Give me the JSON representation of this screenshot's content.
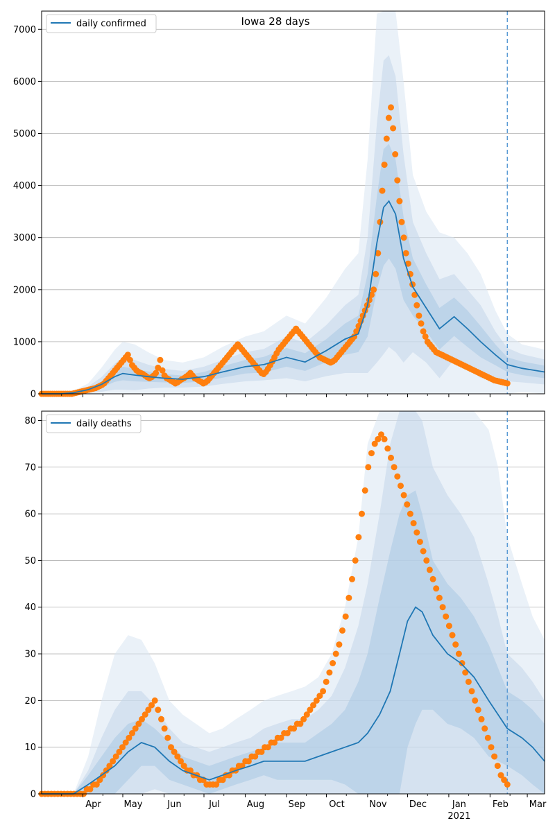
{
  "chart_data": [
    {
      "type": "line",
      "title": "Iowa 28 days",
      "xlabel": "",
      "ylabel": "",
      "xlim": [
        "2020-03-01",
        "2021-03-14"
      ],
      "ylim": [
        0,
        7350
      ],
      "yticks": [
        0,
        1000,
        2000,
        3000,
        4000,
        5000,
        6000,
        7000
      ],
      "grid": "horizontal",
      "legend_position": "top-left",
      "forecast_start": "2021-02-14",
      "series": [
        {
          "name": "daily confirmed",
          "color": "#1f77b4",
          "x": [
            "2020-03-01",
            "2020-03-15",
            "2020-03-25",
            "2020-04-05",
            "2020-04-15",
            "2020-04-25",
            "2020-05-01",
            "2020-05-10",
            "2020-05-20",
            "2020-06-01",
            "2020-06-15",
            "2020-07-01",
            "2020-07-15",
            "2020-08-01",
            "2020-08-15",
            "2020-09-01",
            "2020-09-15",
            "2020-10-01",
            "2020-10-15",
            "2020-10-25",
            "2020-11-01",
            "2020-11-08",
            "2020-11-13",
            "2020-11-17",
            "2020-11-22",
            "2020-11-28",
            "2020-12-05",
            "2020-12-15",
            "2020-12-25",
            "2021-01-05",
            "2021-01-15",
            "2021-01-25",
            "2021-02-05",
            "2021-02-14",
            "2021-02-25",
            "2021-03-14"
          ],
          "values": [
            0,
            0,
            20,
            80,
            180,
            330,
            390,
            360,
            330,
            300,
            280,
            330,
            420,
            520,
            560,
            700,
            610,
            830,
            1050,
            1150,
            1700,
            2900,
            3580,
            3700,
            3450,
            2600,
            2050,
            1650,
            1250,
            1480,
            1250,
            1000,
            750,
            560,
            490,
            420
          ]
        }
      ],
      "bands": [
        {
          "upper": [
            0,
            0,
            60,
            200,
            500,
            850,
            1000,
            950,
            800,
            650,
            600,
            700,
            900,
            1100,
            1200,
            1500,
            1350,
            1850,
            2400,
            2700,
            4500,
            7300,
            7400,
            7400,
            7400,
            6000,
            4200,
            3500,
            3100,
            3000,
            2700,
            2300,
            1600,
            1150,
            950,
            850
          ]
        },
        {
          "upper": [
            0,
            0,
            40,
            140,
            320,
            580,
            700,
            650,
            560,
            480,
            440,
            520,
            650,
            800,
            860,
            1100,
            980,
            1320,
            1700,
            1900,
            3000,
            5200,
            6400,
            6500,
            6100,
            4600,
            3300,
            2700,
            2200,
            2300,
            2000,
            1700,
            1200,
            880,
            760,
            660
          ]
        },
        {
          "upper": [
            0,
            0,
            30,
            100,
            240,
            430,
            520,
            480,
            430,
            380,
            350,
            420,
            530,
            650,
            710,
            880,
            780,
            1050,
            1350,
            1500,
            2300,
            3800,
            4700,
            4800,
            4500,
            3400,
            2600,
            2100,
            1650,
            1850,
            1600,
            1300,
            950,
            700,
            620,
            540
          ]
        }
      ],
      "observed": [
        0,
        0,
        0,
        0,
        0,
        0,
        0,
        0,
        0,
        0,
        0,
        0,
        0,
        0,
        0,
        10,
        20,
        30,
        40,
        50,
        60,
        70,
        80,
        90,
        100,
        110,
        130,
        150,
        170,
        200,
        250,
        300,
        350,
        400,
        450,
        500,
        550,
        600,
        650,
        700,
        750,
        650,
        550,
        500,
        450,
        420,
        400,
        380,
        350,
        320,
        300,
        320,
        350,
        400,
        500,
        650,
        450,
        350,
        300,
        280,
        250,
        230,
        200,
        220,
        250,
        280,
        300,
        330,
        360,
        400,
        350,
        300,
        280,
        250,
        230,
        200,
        220,
        250,
        300,
        350,
        400,
        450,
        500,
        550,
        600,
        650,
        700,
        750,
        800,
        850,
        900,
        950,
        900,
        850,
        800,
        750,
        700,
        650,
        600,
        550,
        500,
        450,
        400,
        380,
        420,
        480,
        550,
        620,
        700,
        780,
        850,
        900,
        950,
        1000,
        1050,
        1100,
        1150,
        1200,
        1250,
        1200,
        1150,
        1100,
        1050,
        1000,
        950,
        900,
        850,
        800,
        750,
        700,
        680,
        660,
        640,
        620,
        600,
        620,
        650,
        700,
        750,
        800,
        850,
        900,
        950,
        1000,
        1050,
        1100,
        1200,
        1300,
        1400,
        1500,
        1600,
        1700,
        1800,
        1900,
        2000,
        2300,
        2700,
        3300,
        3900,
        4400,
        4900,
        5300,
        5500,
        5100,
        4600,
        4100,
        3700,
        3300,
        3000,
        2700,
        2500,
        2300,
        2100,
        1900,
        1700,
        1500,
        1350,
        1200,
        1100,
        1000,
        950,
        900,
        850,
        800,
        780,
        760,
        740,
        720,
        700,
        680,
        660,
        640,
        620,
        600,
        580,
        560,
        540,
        520,
        500,
        480,
        460,
        440,
        420,
        400,
        380,
        360,
        340,
        320,
        300,
        280,
        260,
        250,
        240,
        230,
        220,
        210,
        200
      ]
    },
    {
      "type": "line",
      "title": "",
      "xlabel": "",
      "ylabel": "",
      "xlim": [
        "2020-03-01",
        "2021-03-14"
      ],
      "ylim": [
        0,
        82
      ],
      "yticks": [
        0,
        10,
        20,
        30,
        40,
        50,
        60,
        70,
        80
      ],
      "xtick_labels": [
        "Apr",
        "May",
        "Jun",
        "Jul",
        "Aug",
        "Sep",
        "Oct",
        "Nov",
        "Dec",
        "Jan",
        "Feb",
        "Mar"
      ],
      "xtick_dates": [
        "2020-04-01",
        "2020-05-01",
        "2020-06-01",
        "2020-07-01",
        "2020-08-01",
        "2020-09-01",
        "2020-10-01",
        "2020-11-01",
        "2020-12-01",
        "2021-01-01",
        "2021-02-01",
        "2021-03-01"
      ],
      "year_label": "2021",
      "grid": "horizontal",
      "legend_position": "top-left",
      "forecast_start": "2021-02-14",
      "series": [
        {
          "name": "daily deaths",
          "color": "#1f77b4",
          "x": [
            "2020-03-01",
            "2020-03-25",
            "2020-04-05",
            "2020-04-15",
            "2020-04-25",
            "2020-05-05",
            "2020-05-15",
            "2020-05-25",
            "2020-06-05",
            "2020-06-15",
            "2020-06-25",
            "2020-07-05",
            "2020-07-15",
            "2020-07-25",
            "2020-08-05",
            "2020-08-15",
            "2020-08-25",
            "2020-09-05",
            "2020-09-15",
            "2020-09-25",
            "2020-10-05",
            "2020-10-15",
            "2020-10-25",
            "2020-11-01",
            "2020-11-10",
            "2020-11-18",
            "2020-11-25",
            "2020-12-01",
            "2020-12-07",
            "2020-12-12",
            "2020-12-20",
            "2020-12-31",
            "2021-01-10",
            "2021-01-20",
            "2021-01-31",
            "2021-02-07",
            "2021-02-14",
            "2021-02-25",
            "2021-03-05",
            "2021-03-14"
          ],
          "values": [
            0,
            0,
            2,
            4,
            6,
            9,
            11,
            10,
            7,
            5,
            4,
            3,
            4,
            5,
            6,
            7,
            7,
            7,
            7,
            8,
            9,
            10,
            11,
            13,
            17,
            22,
            30,
            37,
            40,
            39,
            34,
            30,
            28,
            25,
            20,
            17,
            14,
            12,
            10,
            7
          ]
        }
      ],
      "bands": [
        {
          "upper": [
            0,
            0,
            8,
            20,
            30,
            34,
            33,
            28,
            20,
            17,
            15,
            13,
            14,
            16,
            18,
            20,
            21,
            22,
            23,
            25,
            30,
            40,
            55,
            75,
            82,
            82,
            82,
            82,
            82,
            82,
            82,
            82,
            82,
            82,
            78,
            70,
            55,
            45,
            38,
            33
          ]
        },
        {
          "upper": [
            0,
            0,
            5,
            12,
            18,
            22,
            22,
            19,
            14,
            11,
            10,
            9,
            10,
            11,
            12,
            14,
            15,
            16,
            16,
            18,
            21,
            27,
            36,
            45,
            60,
            75,
            82,
            82,
            82,
            80,
            70,
            64,
            60,
            55,
            45,
            38,
            30,
            27,
            24,
            20
          ]
        },
        {
          "upper": [
            0,
            0,
            4,
            8,
            12,
            15,
            16,
            14,
            11,
            8,
            7,
            6,
            7,
            8,
            9,
            10,
            11,
            11,
            11,
            13,
            15,
            18,
            24,
            30,
            42,
            52,
            60,
            64,
            65,
            60,
            50,
            45,
            42,
            38,
            32,
            27,
            22,
            20,
            18,
            15
          ]
        }
      ],
      "observed": [
        0,
        0,
        0,
        0,
        0,
        0,
        0,
        0,
        0,
        0,
        0,
        0,
        0,
        0,
        1,
        1,
        2,
        2,
        3,
        4,
        5,
        6,
        7,
        8,
        9,
        10,
        11,
        12,
        13,
        14,
        15,
        16,
        17,
        18,
        19,
        20,
        18,
        16,
        14,
        12,
        10,
        9,
        8,
        7,
        6,
        5,
        5,
        4,
        4,
        3,
        3,
        2,
        2,
        2,
        2,
        3,
        3,
        4,
        4,
        5,
        5,
        6,
        6,
        7,
        7,
        8,
        8,
        9,
        9,
        10,
        10,
        11,
        11,
        12,
        12,
        13,
        13,
        14,
        14,
        15,
        15,
        16,
        17,
        18,
        19,
        20,
        21,
        22,
        24,
        26,
        28,
        30,
        32,
        35,
        38,
        42,
        46,
        50,
        55,
        60,
        65,
        70,
        73,
        75,
        76,
        77,
        76,
        74,
        72,
        70,
        68,
        66,
        64,
        62,
        60,
        58,
        56,
        54,
        52,
        50,
        48,
        46,
        44,
        42,
        40,
        38,
        36,
        34,
        32,
        30,
        28,
        26,
        24,
        22,
        20,
        18,
        16,
        14,
        12,
        10,
        8,
        6,
        4,
        3,
        2
      ]
    }
  ]
}
